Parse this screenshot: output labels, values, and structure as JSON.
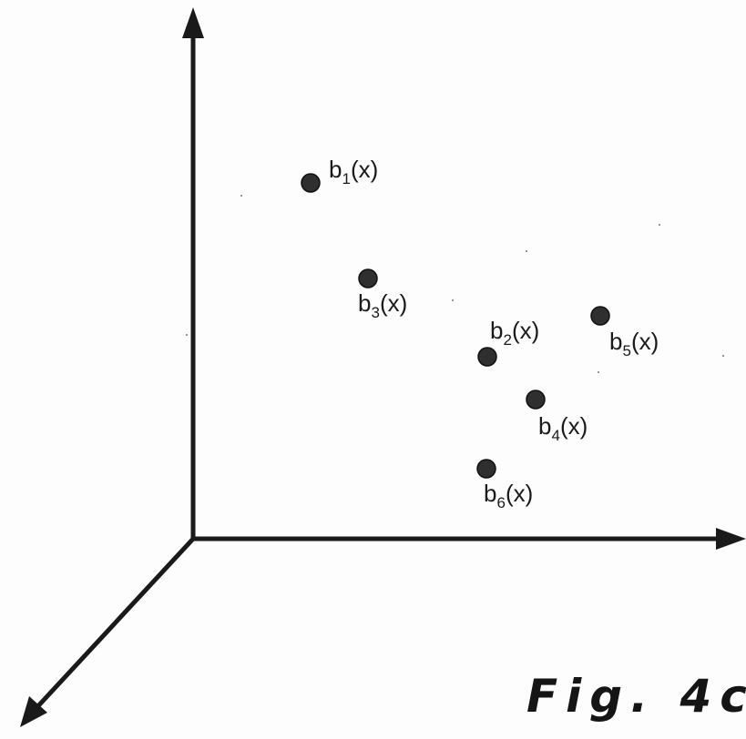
{
  "points": [
    {
      "id": "b1",
      "base": "b",
      "sub": "1",
      "arg": "(x)"
    },
    {
      "id": "b2",
      "base": "b",
      "sub": "2",
      "arg": "(x)"
    },
    {
      "id": "b3",
      "base": "b",
      "sub": "3",
      "arg": "(x)"
    },
    {
      "id": "b4",
      "base": "b",
      "sub": "4",
      "arg": "(x)"
    },
    {
      "id": "b5",
      "base": "b",
      "sub": "5",
      "arg": "(x)"
    },
    {
      "id": "b6",
      "base": "b",
      "sub": "6",
      "arg": "(x)"
    }
  ],
  "caption": "Fig. 4c"
}
